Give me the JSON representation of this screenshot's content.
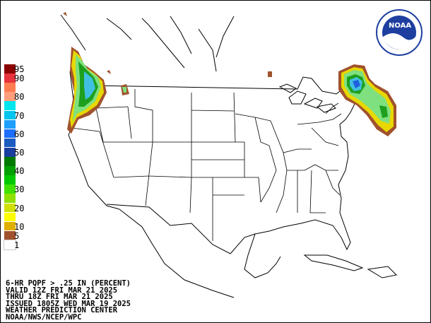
{
  "legend": {
    "items": [
      {
        "label": "95",
        "color": "#8b0000"
      },
      {
        "label": "90",
        "color": "#e8323c"
      },
      {
        "label": "",
        "color": "#ff7d51"
      },
      {
        "label": "80",
        "color": "#ff9e7a"
      },
      {
        "label": "",
        "color": "#00e5ee"
      },
      {
        "label": "70",
        "color": "#00c5ee"
      },
      {
        "label": "",
        "color": "#1e9fff"
      },
      {
        "label": "60",
        "color": "#1e6fff"
      },
      {
        "label": "",
        "color": "#1c5bbf"
      },
      {
        "label": "50",
        "color": "#1b3f9f"
      },
      {
        "label": "",
        "color": "#007a00"
      },
      {
        "label": "40",
        "color": "#00a000"
      },
      {
        "label": "",
        "color": "#00c800"
      },
      {
        "label": "30",
        "color": "#40e000"
      },
      {
        "label": "",
        "color": "#8fe000"
      },
      {
        "label": "20",
        "color": "#d0e000"
      },
      {
        "label": "",
        "color": "#ffff00"
      },
      {
        "label": "10",
        "color": "#e0b000"
      },
      {
        "label": "5",
        "color": "#a0522d"
      },
      {
        "label": "1",
        "color": "#ffffff"
      }
    ]
  },
  "footer": {
    "line1": "6-HR PQPF > .25 IN (PERCENT)",
    "line2": "VALID 12Z FRI MAR 21 2025",
    "line3": "THRU 18Z FRI MAR 21 2025",
    "line4": "ISSUED 1805Z WED MAR 19 2025",
    "line5": "WEATHER PREDICTION CENTER",
    "line6": "NOAA/NWS/NCEP/WPC"
  },
  "logo": {
    "text": "NOAA"
  },
  "colors": {
    "precip_brown": "#a0522d",
    "precip_yellow": "#e8d800",
    "precip_lightgreen": "#7fe07f",
    "precip_green": "#1ea01e",
    "precip_cyan": "#40c0e0",
    "precip_blue": "#1e5fdf",
    "boundary": "#000000"
  }
}
